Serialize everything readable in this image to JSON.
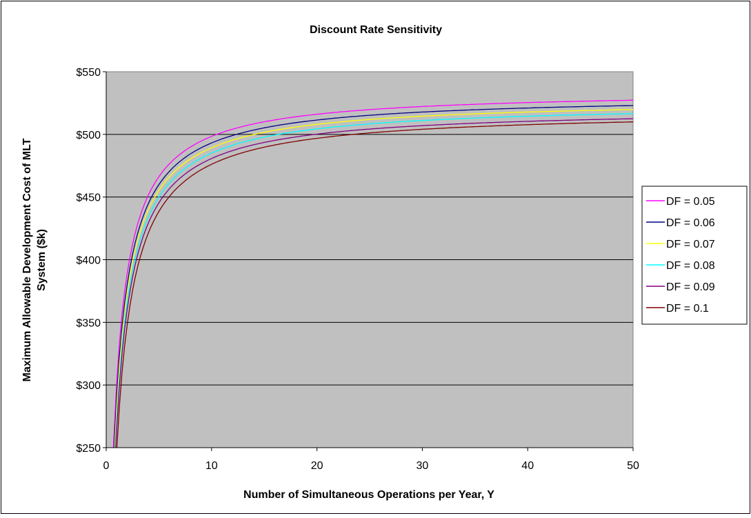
{
  "chart_data": {
    "type": "line",
    "title": "Discount Rate Sensitivity",
    "xlabel": "Number of Simultaneous Operations per Year, Y",
    "ylabel_line1": "Maximum Allowable Development Cost of MLT",
    "ylabel_line2": "System ($k)",
    "xlim": [
      0,
      50
    ],
    "ylim": [
      250,
      550
    ],
    "xticks": [
      0,
      10,
      20,
      30,
      40,
      50
    ],
    "xtick_labels": [
      "0",
      "10",
      "20",
      "30",
      "40",
      "50"
    ],
    "yticks": [
      250,
      300,
      350,
      400,
      450,
      500,
      550
    ],
    "ytick_labels": [
      "$250",
      "$300",
      "$350",
      "$400",
      "$450",
      "$500",
      "$550"
    ],
    "grid": "horizontal",
    "plot_background": "#c0c0c0",
    "legend_position": "right",
    "series": [
      {
        "name": "DF = 0.05",
        "color": "#ff00ff",
        "asymptote": 535.0,
        "k": 6.02,
        "b": 0.69
      },
      {
        "name": "DF = 0.06",
        "color": "#000080",
        "asymptote": 531.0,
        "k": 6.22,
        "b": 0.69
      },
      {
        "name": "DF = 0.07",
        "color": "#ffff00",
        "asymptote": 528.0,
        "k": 6.36,
        "b": 0.69
      },
      {
        "name": "DF = 0.08",
        "color": "#00ffff",
        "asymptote": 525.0,
        "k": 6.56,
        "b": 0.69
      },
      {
        "name": "DF = 0.09",
        "color": "#800080",
        "asymptote": 521.0,
        "k": 6.62,
        "b": 0.69
      },
      {
        "name": "DF = 0.1",
        "color": "#800000",
        "asymptote": 519.0,
        "k": 7.05,
        "b": 0.69
      }
    ]
  }
}
